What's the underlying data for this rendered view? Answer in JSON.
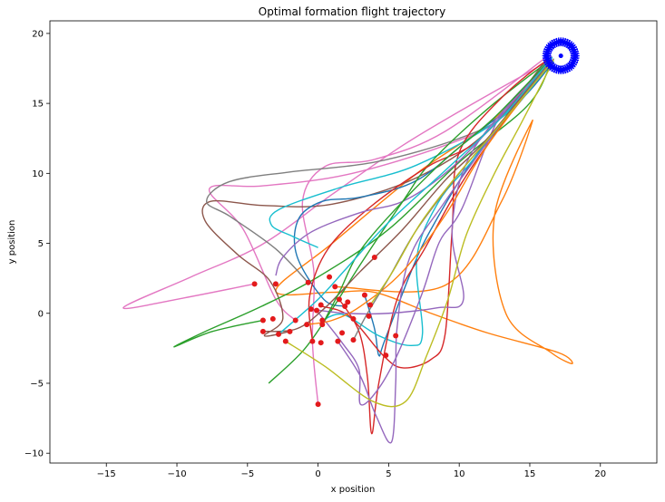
{
  "chart_data": {
    "type": "line",
    "title": "Optimal formation flight trajectory",
    "xlabel": "x position",
    "ylabel": "y position",
    "xlim": [
      -19,
      24
    ],
    "ylim": [
      -10.7,
      20.9
    ],
    "xticks": [
      -15,
      -10,
      -5,
      0,
      5,
      10,
      15,
      20
    ],
    "yticks": [
      -10,
      -5,
      0,
      5,
      10,
      15,
      20
    ],
    "xtick_labels": [
      "−15",
      "−10",
      "−5",
      "0",
      "5",
      "10",
      "15",
      "20"
    ],
    "ytick_labels": [
      "−10",
      "−5",
      "0",
      "5",
      "10",
      "15",
      "20"
    ],
    "grid": false,
    "target": {
      "x": 17.2,
      "y": 18.4,
      "radius": 1.0,
      "color": "#0000ff",
      "marker_count": 40
    },
    "start_color": "#e31a1c",
    "start_points": [
      [
        -4.5,
        2.1
      ],
      [
        -3.0,
        2.1
      ],
      [
        -0.7,
        2.2
      ],
      [
        0.8,
        2.6
      ],
      [
        1.2,
        1.9
      ],
      [
        4.0,
        4.0
      ],
      [
        3.3,
        1.3
      ],
      [
        1.5,
        1.0
      ],
      [
        2.1,
        0.8
      ],
      [
        1.9,
        0.5
      ],
      [
        0.2,
        0.6
      ],
      [
        -0.1,
        0.2
      ],
      [
        -0.5,
        0.3
      ],
      [
        0.3,
        -0.5
      ],
      [
        0.3,
        -0.8
      ],
      [
        -1.6,
        -0.5
      ],
      [
        -3.2,
        -0.4
      ],
      [
        -3.9,
        -0.5
      ],
      [
        -3.9,
        -1.3
      ],
      [
        -2.0,
        -1.3
      ],
      [
        -2.8,
        -1.5
      ],
      [
        -2.3,
        -2.0
      ],
      [
        -0.4,
        -2.0
      ],
      [
        0.2,
        -2.1
      ],
      [
        1.4,
        -2.0
      ],
      [
        2.5,
        -1.9
      ],
      [
        1.7,
        -1.4
      ],
      [
        2.5,
        -0.4
      ],
      [
        3.7,
        0.6
      ],
      [
        5.5,
        -1.6
      ],
      [
        4.8,
        -3.0
      ],
      [
        0.0,
        -6.5
      ],
      [
        -0.8,
        -0.8
      ],
      [
        3.6,
        -0.2
      ]
    ],
    "series_colors": [
      "#1f77b4",
      "#ff7f0e",
      "#2ca02c",
      "#d62728",
      "#9467bd",
      "#8c564b",
      "#e377c2",
      "#7f7f7f",
      "#bcbd22",
      "#17becf"
    ],
    "series": [
      {
        "color": "#ff7f0e",
        "points": [
          [
            1.2,
            1.9
          ],
          [
            9,
            2
          ],
          [
            13,
            8
          ],
          [
            15.2,
            13.8
          ],
          [
            12.5,
            7
          ],
          [
            13.3,
            0
          ],
          [
            16.5,
            -2.8
          ],
          [
            18,
            -3.6
          ],
          [
            17,
            -2.8
          ],
          [
            12,
            -1.4
          ],
          [
            8,
            0
          ],
          [
            4,
            1.5
          ],
          [
            1,
            1.5
          ],
          [
            -3,
            1.6
          ],
          [
            1,
            5
          ],
          [
            7,
            10
          ],
          [
            12,
            13.5
          ],
          [
            16.5,
            17.8
          ]
        ]
      },
      {
        "color": "#e377c2",
        "points": [
          [
            -4.5,
            2.1
          ],
          [
            -9.5,
            1.1
          ],
          [
            -13.8,
            0.4
          ],
          [
            -9,
            2.6
          ],
          [
            -4,
            4.9
          ],
          [
            1,
            8.5
          ],
          [
            6,
            12
          ],
          [
            11,
            15
          ],
          [
            16.3,
            18.0
          ]
        ]
      },
      {
        "color": "#e377c2",
        "points": [
          [
            0.0,
            -6.5
          ],
          [
            -0.4,
            -2
          ],
          [
            -0.3,
            3
          ],
          [
            -1.1,
            8
          ],
          [
            0.5,
            10.5
          ],
          [
            4,
            11
          ],
          [
            9,
            13
          ],
          [
            16.3,
            18.4
          ]
        ]
      },
      {
        "color": "#e377c2",
        "points": [
          [
            -1.6,
            -0.5
          ],
          [
            -3,
            1
          ],
          [
            -5.3,
            6
          ],
          [
            -7.7,
            8.9
          ],
          [
            -4,
            9.1
          ],
          [
            2,
            9.9
          ],
          [
            9,
            12
          ],
          [
            13,
            14
          ],
          [
            16.2,
            18.2
          ]
        ]
      },
      {
        "color": "#8c564b",
        "points": [
          [
            -2.0,
            -1.3
          ],
          [
            -3.8,
            -1.6
          ],
          [
            -2.5,
            -0.4
          ],
          [
            -3.4,
            2.3
          ],
          [
            -5.7,
            4.2
          ],
          [
            -8,
            6.6
          ],
          [
            -7.6,
            8.0
          ],
          [
            -3.8,
            7.7
          ],
          [
            1,
            7.8
          ],
          [
            7,
            9.7
          ],
          [
            12,
            13
          ],
          [
            16.3,
            18.3
          ]
        ]
      },
      {
        "color": "#7f7f7f",
        "points": [
          [
            -0.7,
            2.2
          ],
          [
            -3.0,
            4.6
          ],
          [
            -6.2,
            6.9
          ],
          [
            -7.9,
            8.0
          ],
          [
            -6.3,
            9.4
          ],
          [
            -2,
            10.1
          ],
          [
            4,
            10.8
          ],
          [
            10,
            12.5
          ],
          [
            13.4,
            14.3
          ],
          [
            16.4,
            18.0
          ]
        ]
      },
      {
        "color": "#1f77b4",
        "points": [
          [
            1.9,
            0.5
          ],
          [
            0.4,
            1.0
          ],
          [
            -1.5,
            4.1
          ],
          [
            -1.4,
            6.7
          ],
          [
            0.3,
            8.0
          ],
          [
            3,
            8.3
          ],
          [
            7,
            9.5
          ],
          [
            11,
            12.7
          ],
          [
            14.5,
            15.4
          ],
          [
            16.6,
            17.9
          ]
        ]
      },
      {
        "color": "#1f77b4",
        "points": [
          [
            3.3,
            1.3
          ],
          [
            4.0,
            -1.1
          ],
          [
            4.3,
            -3.0
          ],
          [
            4.7,
            -2.0
          ],
          [
            6.6,
            3.0
          ],
          [
            8,
            6
          ],
          [
            11,
            11
          ],
          [
            13.8,
            14.5
          ],
          [
            16.7,
            18.0
          ]
        ]
      },
      {
        "color": "#17becf",
        "points": [
          [
            0.3,
            -0.5
          ],
          [
            1.8,
            -0.1
          ],
          [
            4.3,
            -1.6
          ],
          [
            6.6,
            -2.3
          ],
          [
            7.4,
            -1.4
          ],
          [
            7.0,
            4
          ],
          [
            8.5,
            7.9
          ],
          [
            11,
            11
          ],
          [
            16.5,
            17.9
          ],
          [
            13,
            14
          ],
          [
            7,
            10.6
          ],
          [
            1.6,
            9.0
          ],
          [
            -2.8,
            7.4
          ],
          [
            -3.3,
            6.3
          ],
          [
            -1.8,
            5.5
          ],
          [
            0,
            4.7
          ]
        ]
      },
      {
        "color": "#2ca02c",
        "points": [
          [
            -3.5,
            -5.0
          ],
          [
            -1,
            -2.6
          ],
          [
            1,
            0.3
          ],
          [
            3,
            3.5
          ],
          [
            6,
            8.0
          ],
          [
            8,
            10.8
          ],
          [
            12,
            14.6
          ],
          [
            16.3,
            18.0
          ]
        ]
      },
      {
        "color": "#2ca02c",
        "points": [
          [
            -3.9,
            -0.5
          ],
          [
            -7.5,
            -1.3
          ],
          [
            -10.2,
            -2.4
          ],
          [
            -8,
            -1.3
          ],
          [
            -4,
            0.5
          ],
          [
            0,
            2.6
          ],
          [
            5,
            6
          ],
          [
            10,
            10.8
          ],
          [
            14.8,
            14.8
          ],
          [
            16.4,
            17.6
          ]
        ]
      },
      {
        "color": "#d62728",
        "points": [
          [
            -0.4,
            -2.0
          ],
          [
            -0.6,
            1.2
          ],
          [
            0.7,
            4.6
          ],
          [
            3.7,
            7.6
          ],
          [
            7.8,
            10.5
          ],
          [
            11.5,
            12.5
          ],
          [
            16.3,
            18.0
          ],
          [
            13,
            15.4
          ],
          [
            10,
            11.5
          ],
          [
            9.5,
            6
          ],
          [
            9,
            -1.5
          ],
          [
            8.0,
            -3.3
          ],
          [
            6,
            -3.9
          ],
          [
            4.6,
            -3.0
          ],
          [
            2.2,
            -0.2
          ],
          [
            0.3,
            0.5
          ]
        ]
      },
      {
        "color": "#d62728",
        "points": [
          [
            1.5,
            1.0
          ],
          [
            2.9,
            -1.3
          ],
          [
            3.5,
            -4.6
          ],
          [
            3.8,
            -8.6
          ],
          [
            4.3,
            -5
          ],
          [
            5.6,
            1
          ],
          [
            7.6,
            4.7
          ],
          [
            10.8,
            10.3
          ],
          [
            16.4,
            18.1
          ]
        ]
      },
      {
        "color": "#9467bd",
        "points": [
          [
            -0.1,
            0.2
          ],
          [
            1.7,
            -2.1
          ],
          [
            2.9,
            -4.0
          ],
          [
            3.0,
            -6.5
          ],
          [
            4.2,
            -5.5
          ],
          [
            5.6,
            -3.0
          ],
          [
            7.4,
            1.5
          ],
          [
            8.6,
            5.1
          ],
          [
            10.2,
            7.5
          ],
          [
            12.9,
            14.1
          ],
          [
            16.4,
            17.8
          ]
        ]
      },
      {
        "color": "#9467bd",
        "points": [
          [
            1.4,
            -2.0
          ],
          [
            3.0,
            -4.5
          ],
          [
            4.1,
            -7.3
          ],
          [
            5.2,
            -9.2
          ],
          [
            5.5,
            -5
          ],
          [
            5.6,
            -1
          ],
          [
            6.5,
            4
          ],
          [
            9,
            8
          ],
          [
            14,
            15
          ],
          [
            16.5,
            18.3
          ],
          [
            12,
            13
          ],
          [
            9,
            10
          ],
          [
            6,
            8
          ],
          [
            3,
            7.2
          ],
          [
            -0.5,
            5.8
          ],
          [
            -2.5,
            4.0
          ],
          [
            -3.0,
            2.7
          ]
        ]
      },
      {
        "color": "#9467bd",
        "points": [
          [
            -0.5,
            0.3
          ],
          [
            2,
            0
          ],
          [
            5,
            0
          ],
          [
            8.5,
            0.4
          ],
          [
            10.3,
            1.0
          ],
          [
            9.5,
            6
          ],
          [
            11,
            11.7
          ],
          [
            16.4,
            18.0
          ]
        ]
      },
      {
        "color": "#bcbd22",
        "points": [
          [
            -2.3,
            -2.0
          ],
          [
            0.5,
            -3.8
          ],
          [
            3.9,
            -6.3
          ],
          [
            6.2,
            -6.3
          ],
          [
            7.7,
            -3.0
          ],
          [
            9.2,
            1.0
          ],
          [
            10.5,
            5.6
          ],
          [
            12.5,
            10.0
          ],
          [
            14.4,
            13.6
          ],
          [
            16.6,
            17.9
          ]
        ]
      },
      {
        "color": "#8c564b",
        "points": [
          [
            -3.9,
            -1.3
          ],
          [
            -1.5,
            -1.1
          ],
          [
            0.5,
            0.4
          ],
          [
            3,
            3
          ],
          [
            6,
            6
          ],
          [
            9,
            9.5
          ],
          [
            12,
            12.5
          ],
          [
            16.5,
            18.1
          ]
        ]
      },
      {
        "color": "#ff7f0e",
        "points": [
          [
            -0.8,
            -0.8
          ],
          [
            1,
            -0.5
          ],
          [
            3,
            0.5
          ],
          [
            6,
            3
          ],
          [
            9,
            7
          ],
          [
            12,
            12
          ],
          [
            16.5,
            18.0
          ]
        ]
      },
      {
        "color": "#2ca02c",
        "points": [
          [
            0.3,
            -0.8
          ],
          [
            1.5,
            1.5
          ],
          [
            3,
            4.5
          ],
          [
            6,
            8
          ],
          [
            9,
            11
          ],
          [
            12.5,
            14
          ],
          [
            16.5,
            18.2
          ]
        ]
      },
      {
        "color": "#17becf",
        "points": [
          [
            -2.8,
            -1.5
          ],
          [
            0,
            1
          ],
          [
            2,
            3.2
          ],
          [
            5,
            6.5
          ],
          [
            9,
            10.2
          ],
          [
            13,
            14
          ],
          [
            16.6,
            18.3
          ]
        ]
      },
      {
        "color": "#7f7f7f",
        "points": [
          [
            2.5,
            -1.9
          ],
          [
            3.5,
            0
          ],
          [
            5,
            2.5
          ],
          [
            7,
            6
          ],
          [
            10,
            10
          ],
          [
            13,
            13.6
          ],
          [
            16.7,
            18.2
          ]
        ]
      },
      {
        "color": "#bcbd22",
        "points": [
          [
            3.7,
            0.6
          ],
          [
            5.3,
            3
          ],
          [
            7.3,
            6.5
          ],
          [
            9.8,
            9.8
          ],
          [
            12.5,
            13
          ],
          [
            16.7,
            18.1
          ]
        ]
      }
    ]
  }
}
